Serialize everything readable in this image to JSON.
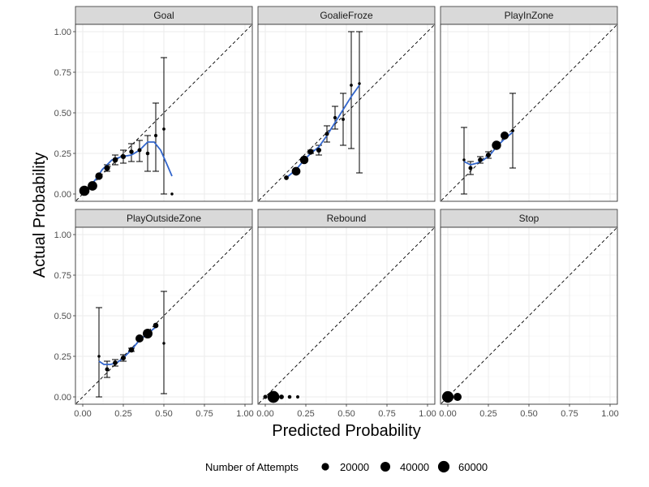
{
  "chart_data": {
    "type": "scatter",
    "xlabel": "Predicted Probability",
    "ylabel": "Actual Probability",
    "xlim": [
      0,
      1
    ],
    "ylim": [
      0,
      1
    ],
    "x_ticks": [
      "0.00",
      "0.25",
      "0.50",
      "0.75",
      "1.00"
    ],
    "y_ticks": [
      "0.00",
      "0.25",
      "0.50",
      "0.75",
      "1.00"
    ],
    "grid": true,
    "reference_line": "y = x (dashed)",
    "legend": {
      "title": "Number of Attempts",
      "placement": "bottom",
      "sizes": [
        {
          "label": "20000",
          "value": 20000
        },
        {
          "label": "40000",
          "value": 40000
        },
        {
          "label": "60000",
          "value": 60000
        }
      ]
    },
    "colors": {
      "point": "#000000",
      "smooth": "#3366cc",
      "strip_bg": "#d9d9d9",
      "grid": "#ebebeb"
    },
    "panels": [
      {
        "name": "Goal",
        "points": [
          {
            "x": 0.01,
            "y": 0.02,
            "n": 45000,
            "lo": 0.02,
            "hi": 0.02
          },
          {
            "x": 0.06,
            "y": 0.05,
            "n": 38000,
            "lo": 0.05,
            "hi": 0.05
          },
          {
            "x": 0.1,
            "y": 0.11,
            "n": 20000,
            "lo": 0.1,
            "hi": 0.12
          },
          {
            "x": 0.15,
            "y": 0.16,
            "n": 10000,
            "lo": 0.14,
            "hi": 0.18
          },
          {
            "x": 0.2,
            "y": 0.21,
            "n": 8000,
            "lo": 0.18,
            "hi": 0.24
          },
          {
            "x": 0.25,
            "y": 0.23,
            "n": 6000,
            "lo": 0.19,
            "hi": 0.27
          },
          {
            "x": 0.3,
            "y": 0.26,
            "n": 4000,
            "lo": 0.2,
            "hi": 0.31
          },
          {
            "x": 0.35,
            "y": 0.27,
            "n": 3000,
            "lo": 0.2,
            "hi": 0.33
          },
          {
            "x": 0.4,
            "y": 0.25,
            "n": 2000,
            "lo": 0.14,
            "hi": 0.36
          },
          {
            "x": 0.45,
            "y": 0.36,
            "n": 1500,
            "lo": 0.14,
            "hi": 0.56
          },
          {
            "x": 0.5,
            "y": 0.4,
            "n": 800,
            "lo": 0.0,
            "hi": 0.84
          },
          {
            "x": 0.55,
            "y": 0.0,
            "n": 500,
            "lo": 0.0,
            "hi": 0.0
          }
        ],
        "smooth": [
          [
            0.03,
            0.03
          ],
          [
            0.08,
            0.09
          ],
          [
            0.12,
            0.15
          ],
          [
            0.18,
            0.21
          ],
          [
            0.24,
            0.23
          ],
          [
            0.3,
            0.24
          ],
          [
            0.35,
            0.27
          ],
          [
            0.4,
            0.32
          ],
          [
            0.44,
            0.32
          ],
          [
            0.48,
            0.27
          ],
          [
            0.52,
            0.18
          ],
          [
            0.55,
            0.11
          ]
        ]
      },
      {
        "name": "GoalieFroze",
        "points": [
          {
            "x": 0.13,
            "y": 0.1,
            "n": 5000,
            "lo": 0.1,
            "hi": 0.1
          },
          {
            "x": 0.19,
            "y": 0.14,
            "n": 30000,
            "lo": 0.14,
            "hi": 0.14
          },
          {
            "x": 0.24,
            "y": 0.21,
            "n": 28000,
            "lo": 0.21,
            "hi": 0.21
          },
          {
            "x": 0.28,
            "y": 0.26,
            "n": 10000,
            "lo": 0.25,
            "hi": 0.27
          },
          {
            "x": 0.33,
            "y": 0.27,
            "n": 6000,
            "lo": 0.24,
            "hi": 0.3
          },
          {
            "x": 0.38,
            "y": 0.37,
            "n": 3000,
            "lo": 0.32,
            "hi": 0.42
          },
          {
            "x": 0.43,
            "y": 0.47,
            "n": 1500,
            "lo": 0.4,
            "hi": 0.54
          },
          {
            "x": 0.48,
            "y": 0.46,
            "n": 1000,
            "lo": 0.3,
            "hi": 0.62
          },
          {
            "x": 0.53,
            "y": 0.67,
            "n": 800,
            "lo": 0.28,
            "hi": 1.0
          },
          {
            "x": 0.58,
            "y": 0.68,
            "n": 500,
            "lo": 0.13,
            "hi": 1.0
          }
        ],
        "smooth": [
          [
            0.13,
            0.1
          ],
          [
            0.19,
            0.15
          ],
          [
            0.24,
            0.21
          ],
          [
            0.28,
            0.25
          ],
          [
            0.33,
            0.29
          ],
          [
            0.38,
            0.36
          ],
          [
            0.43,
            0.44
          ],
          [
            0.48,
            0.52
          ],
          [
            0.53,
            0.6
          ],
          [
            0.58,
            0.67
          ]
        ]
      },
      {
        "name": "PlayInZone",
        "points": [
          {
            "x": 0.1,
            "y": 0.21,
            "n": 500,
            "lo": 0.0,
            "hi": 0.41
          },
          {
            "x": 0.14,
            "y": 0.16,
            "n": 3000,
            "lo": 0.12,
            "hi": 0.2
          },
          {
            "x": 0.2,
            "y": 0.21,
            "n": 5000,
            "lo": 0.19,
            "hi": 0.23
          },
          {
            "x": 0.25,
            "y": 0.24,
            "n": 6000,
            "lo": 0.22,
            "hi": 0.26
          },
          {
            "x": 0.3,
            "y": 0.3,
            "n": 35000,
            "lo": 0.3,
            "hi": 0.3
          },
          {
            "x": 0.35,
            "y": 0.36,
            "n": 25000,
            "lo": 0.36,
            "hi": 0.36
          },
          {
            "x": 0.4,
            "y": 0.39,
            "n": 1000,
            "lo": 0.16,
            "hi": 0.62
          }
        ],
        "smooth": [
          [
            0.1,
            0.2
          ],
          [
            0.14,
            0.18
          ],
          [
            0.18,
            0.19
          ],
          [
            0.22,
            0.21
          ],
          [
            0.26,
            0.24
          ],
          [
            0.3,
            0.29
          ],
          [
            0.35,
            0.34
          ],
          [
            0.4,
            0.38
          ]
        ]
      },
      {
        "name": "PlayOutsideZone",
        "points": [
          {
            "x": 0.1,
            "y": 0.25,
            "n": 500,
            "lo": 0.0,
            "hi": 0.55
          },
          {
            "x": 0.15,
            "y": 0.17,
            "n": 3000,
            "lo": 0.12,
            "hi": 0.22
          },
          {
            "x": 0.2,
            "y": 0.21,
            "n": 5000,
            "lo": 0.19,
            "hi": 0.23
          },
          {
            "x": 0.25,
            "y": 0.24,
            "n": 6000,
            "lo": 0.22,
            "hi": 0.26
          },
          {
            "x": 0.3,
            "y": 0.29,
            "n": 8000,
            "lo": 0.28,
            "hi": 0.3
          },
          {
            "x": 0.35,
            "y": 0.36,
            "n": 25000,
            "lo": 0.36,
            "hi": 0.36
          },
          {
            "x": 0.4,
            "y": 0.39,
            "n": 40000,
            "lo": 0.39,
            "hi": 0.39
          },
          {
            "x": 0.45,
            "y": 0.44,
            "n": 8000,
            "lo": 0.44,
            "hi": 0.44
          },
          {
            "x": 0.5,
            "y": 0.33,
            "n": 500,
            "lo": 0.02,
            "hi": 0.65
          }
        ],
        "smooth": [
          [
            0.1,
            0.22
          ],
          [
            0.13,
            0.2
          ],
          [
            0.17,
            0.2
          ],
          [
            0.21,
            0.21
          ],
          [
            0.25,
            0.24
          ],
          [
            0.3,
            0.29
          ],
          [
            0.35,
            0.35
          ],
          [
            0.4,
            0.39
          ],
          [
            0.45,
            0.43
          ]
        ]
      },
      {
        "name": "Rebound",
        "points": [
          {
            "x": 0.0,
            "y": 0.0,
            "n": 3000,
            "lo": 0.0,
            "hi": 0.0
          },
          {
            "x": 0.05,
            "y": 0.0,
            "n": 65000,
            "lo": 0.0,
            "hi": 0.0
          },
          {
            "x": 0.1,
            "y": 0.0,
            "n": 5000,
            "lo": 0.0,
            "hi": 0.0
          },
          {
            "x": 0.15,
            "y": 0.0,
            "n": 2000,
            "lo": 0.0,
            "hi": 0.0
          },
          {
            "x": 0.2,
            "y": 0.0,
            "n": 1000,
            "lo": 0.0,
            "hi": 0.0
          }
        ],
        "smooth": []
      },
      {
        "name": "Stop",
        "points": [
          {
            "x": 0.0,
            "y": 0.0,
            "n": 60000,
            "lo": 0.0,
            "hi": 0.0
          },
          {
            "x": 0.06,
            "y": 0.0,
            "n": 25000,
            "lo": 0.0,
            "hi": 0.0
          }
        ],
        "smooth": []
      }
    ]
  }
}
